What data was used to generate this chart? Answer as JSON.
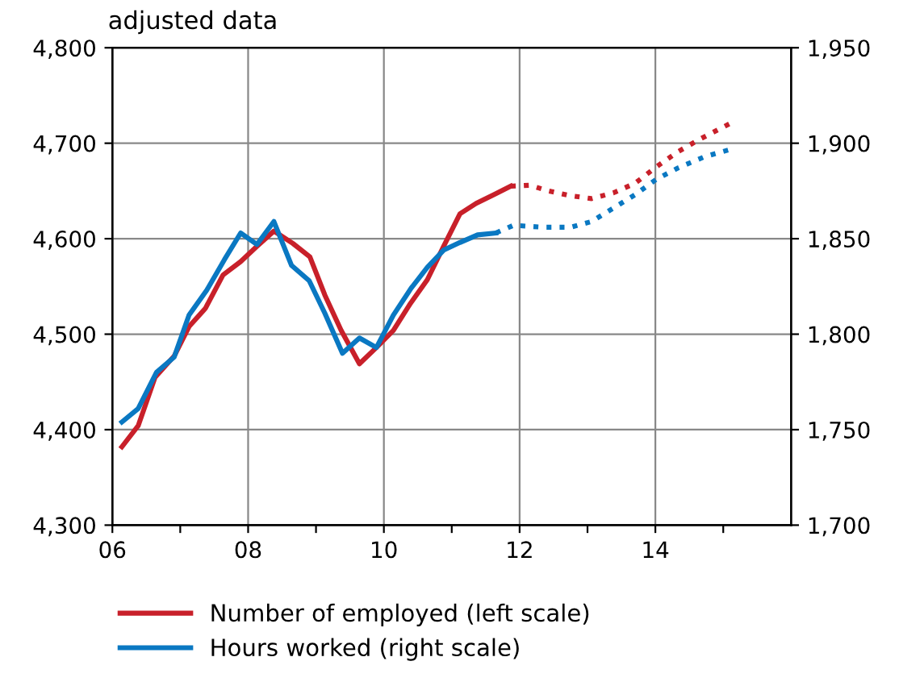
{
  "chart_data": {
    "type": "line",
    "title": "adjusted data",
    "xlim": [
      2006,
      2016
    ],
    "xticks": [
      {
        "value": 2006,
        "label": "06"
      },
      {
        "value": 2007,
        "label": null
      },
      {
        "value": 2008,
        "label": "08"
      },
      {
        "value": 2009,
        "label": null
      },
      {
        "value": 2010,
        "label": "10"
      },
      {
        "value": 2011,
        "label": null
      },
      {
        "value": 2012,
        "label": "12"
      },
      {
        "value": 2013,
        "label": null
      },
      {
        "value": 2014,
        "label": "14"
      },
      {
        "value": 2015,
        "label": null
      }
    ],
    "ylim": [
      4300,
      4800
    ],
    "yticks": [
      {
        "value": 4300,
        "label": "4,300"
      },
      {
        "value": 4400,
        "label": "4,400"
      },
      {
        "value": 4500,
        "label": "4,500"
      },
      {
        "value": 4600,
        "label": "4,600"
      },
      {
        "value": 4700,
        "label": "4,700"
      },
      {
        "value": 4800,
        "label": "4,800"
      }
    ],
    "y2lim": [
      1700,
      1950
    ],
    "y2ticks": [
      {
        "value": 1700,
        "label": "1,700"
      },
      {
        "value": 1750,
        "label": "1,750"
      },
      {
        "value": 1800,
        "label": "1,800"
      },
      {
        "value": 1850,
        "label": "1,850"
      },
      {
        "value": 1900,
        "label": "1,900"
      },
      {
        "value": 1950,
        "label": "1,950"
      }
    ],
    "grid": true,
    "legend": "bottom",
    "series": [
      {
        "name": "Number of employed (left scale)",
        "color": "#c8202a",
        "line_style": "solid",
        "x": [
          2006.14,
          2006.38,
          2006.63,
          2006.91,
          2007.13,
          2007.37,
          2007.63,
          2007.89,
          2008.13,
          2008.38,
          2008.66,
          2008.91,
          2009.13,
          2009.37,
          2009.64,
          2009.89,
          2010.14,
          2010.38,
          2010.64,
          2010.88,
          2011.12,
          2011.36,
          2011.62,
          2011.87
        ],
        "values": [
          4382,
          4404,
          4455,
          4477,
          4508,
          4527,
          4562,
          4576,
          4592,
          4608,
          4595,
          4581,
          4541,
          4504,
          4469,
          4486,
          4504,
          4531,
          4557,
          4592,
          4626,
          4637,
          4646,
          4655
        ]
      },
      {
        "color": "#c8202a",
        "line_style": "dotted",
        "x": [
          2011.87,
          2012.15,
          2012.43,
          2012.75,
          2013.06,
          2013.38,
          2013.7,
          2014.01,
          2014.33,
          2014.65,
          2015.11
        ],
        "values": [
          4655,
          4656,
          4650,
          4645,
          4642,
          4648,
          4658,
          4675,
          4691,
          4704,
          4721
        ]
      },
      {
        "name": "Hours worked (right scale)",
        "color": "#0a78c2",
        "line_style": "solid",
        "axis": "y2",
        "x": [
          2006.14,
          2006.38,
          2006.65,
          2006.91,
          2007.13,
          2007.39,
          2007.65,
          2007.89,
          2008.13,
          2008.38,
          2008.64,
          2008.9,
          2009.13,
          2009.39,
          2009.64,
          2009.89,
          2010.14,
          2010.4,
          2010.64,
          2010.88,
          2011.12,
          2011.38,
          2011.65
        ],
        "values": [
          1754,
          1761,
          1780,
          1788,
          1810,
          1823,
          1839,
          1853,
          1847,
          1859,
          1836,
          1828,
          1811,
          1790,
          1798,
          1793,
          1810,
          1824,
          1835,
          1844,
          1848,
          1852,
          1853
        ]
      },
      {
        "color": "#0a78c2",
        "line_style": "dotted",
        "axis": "y2",
        "x": [
          2011.65,
          2011.91,
          2012.35,
          2012.75,
          2013.06,
          2013.38,
          2013.7,
          2014.01,
          2014.33,
          2014.73,
          2015.13
        ],
        "values": [
          1853,
          1857,
          1856,
          1856,
          1859,
          1866,
          1873,
          1881,
          1887,
          1893,
          1897
        ]
      }
    ]
  }
}
